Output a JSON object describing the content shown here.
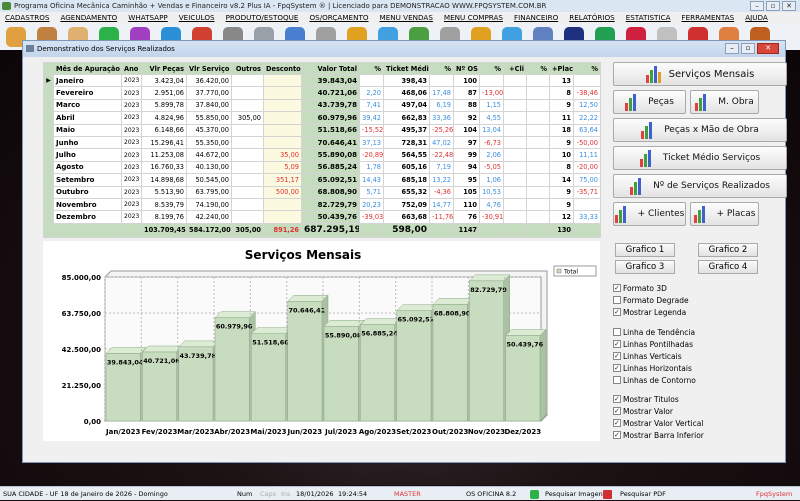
{
  "app": {
    "title": "Programa Oficina Mecânica Caminhão + Vendas e Financeiro v8.2 Plus IA - FpqSystem ® | Licenciado para  DEMONSTRACAO WWW.FPQSYSTEM.COM.BR"
  },
  "menu": [
    "CADASTROS",
    "AGENDAMENTO",
    "WHATSAPP",
    "VEICULOS",
    "PRODUTO/ESTOQUE",
    "OS/ORÇAMENTO",
    "MENU VENDAS",
    "MENU COMPRAS",
    "FINANCEIRO",
    "RELATÓRIOS",
    "ESTATISTICA",
    "FERRAMENTAS",
    "AJUDA"
  ],
  "toolbar_colors": [
    "#e0a040",
    "#c08040",
    "#e0b070",
    "#2db24a",
    "#a040c0",
    "#2b8fd8",
    "#d04030",
    "#888888",
    "#9aa0a8",
    "#4a7fd0",
    "#a0a0a0",
    "#e0a020",
    "#40a0e0",
    "#4aa040",
    "#a0a0a0",
    "#e0a020",
    "#40a0e0",
    "#6080c0",
    "#203080",
    "#20a050",
    "#d02040",
    "#c0c0c0",
    "#d03030",
    "#e08040",
    "#c06020"
  ],
  "window": {
    "title": "Demonstrativo dos Serviços Realizados"
  },
  "grid": {
    "headers": [
      "Mês de Apuração",
      "Ano",
      "Vlr Peças",
      "Vlr Serviço",
      "Outros",
      "Desconto",
      "Valor Total",
      "%",
      "Ticket Médio",
      "%",
      "Nº OS",
      "%",
      "+Cli",
      "%",
      "+Placa",
      "%"
    ],
    "rows": [
      [
        "Janeiro",
        "2023",
        "3.423,04",
        "36.420,00",
        "",
        "",
        "39.843,04",
        "",
        "398,43",
        "",
        "100",
        "",
        "",
        "",
        "13",
        ""
      ],
      [
        "Fevereiro",
        "2023",
        "2.951,06",
        "37.770,00",
        "",
        "",
        "40.721,06",
        "2,20",
        "468,06",
        "17,48",
        "87",
        "-13,00",
        "",
        "",
        "8",
        "-38,46"
      ],
      [
        "Marco",
        "2023",
        "5.899,78",
        "37.840,00",
        "",
        "",
        "43.739,78",
        "7,41",
        "497,04",
        "6,19",
        "88",
        "1,15",
        "",
        "",
        "9",
        "12,50"
      ],
      [
        "Abril",
        "2023",
        "4.824,96",
        "55.850,00",
        "305,00",
        "",
        "60.979,96",
        "39,42",
        "662,83",
        "33,36",
        "92",
        "4,55",
        "",
        "",
        "11",
        "22,22"
      ],
      [
        "Maio",
        "2023",
        "6.148,66",
        "45.370,00",
        "",
        "",
        "51.518,66",
        "-15,52",
        "495,37",
        "-25,26",
        "104",
        "13,04",
        "",
        "",
        "18",
        "63,64"
      ],
      [
        "Junho",
        "2023",
        "15.296,41",
        "55.350,00",
        "",
        "",
        "70.646,41",
        "37,13",
        "728,31",
        "47,02",
        "97",
        "-6,73",
        "",
        "",
        "9",
        "-50,00"
      ],
      [
        "Julho",
        "2023",
        "11.253,08",
        "44.672,00",
        "",
        "35,00",
        "55.890,08",
        "-20,89",
        "564,55",
        "-22,48",
        "99",
        "2,06",
        "",
        "",
        "10",
        "11,11"
      ],
      [
        "Agosto",
        "2023",
        "16.760,33",
        "40.130,00",
        "",
        "5,09",
        "56.885,24",
        "1,78",
        "605,16",
        "7,19",
        "94",
        "-5,05",
        "",
        "",
        "8",
        "-20,00"
      ],
      [
        "Setembro",
        "2023",
        "14.898,68",
        "50.545,00",
        "",
        "351,17",
        "65.092,51",
        "14,43",
        "685,18",
        "13,22",
        "95",
        "1,06",
        "",
        "",
        "14",
        "75,00"
      ],
      [
        "Outubro",
        "2023",
        "5.513,90",
        "63.795,00",
        "",
        "500,00",
        "68.808,90",
        "5,71",
        "655,32",
        "-4,36",
        "105",
        "10,53",
        "",
        "",
        "9",
        "-35,71"
      ],
      [
        "Novembro",
        "2023",
        "8.539,79",
        "74.190,00",
        "",
        "",
        "82.729,79",
        "20,23",
        "752,09",
        "14,77",
        "110",
        "4,76",
        "",
        "",
        "9",
        ""
      ],
      [
        "Dezembro",
        "2023",
        "8.199,76",
        "42.240,00",
        "",
        "",
        "50.439,76",
        "-39,03",
        "663,68",
        "-11,76",
        "76",
        "-30,91",
        "",
        "",
        "12",
        "33,33"
      ]
    ],
    "totals": [
      "",
      "",
      "103.709,45",
      "584.172,00",
      "305,00",
      "891,26",
      "687.295,19",
      "",
      "598,00",
      "",
      "1147",
      "",
      "",
      "",
      "130",
      ""
    ]
  },
  "buttons": {
    "servicos_mensais": "Serviços Mensais",
    "pecas": "Peças",
    "mao_obra": "M. Obra",
    "pecas_x_mao": "Peças x Mão de Obra",
    "ticket": "Ticket Médio Serviços",
    "num_servicos": "Nº de Serviços Realizados",
    "clientes": "+ Clientes",
    "placas": "+ Placas"
  },
  "graph_buttons": [
    "Grafico 1",
    "Grafico 2",
    "Grafico 3",
    "Grafico 4"
  ],
  "options": [
    {
      "label": "Formato 3D",
      "checked": true
    },
    {
      "label": "Formato Degrade",
      "checked": false
    },
    {
      "label": "Mostrar Legenda",
      "checked": true
    },
    {
      "label": "Linha de Tendência",
      "checked": false
    },
    {
      "label": "Linhas Pontilhadas",
      "checked": true
    },
    {
      "label": "Linhas Verticais",
      "checked": true
    },
    {
      "label": "Linhas Horizontais",
      "checked": true
    },
    {
      "label": "Linhas de Contorno",
      "checked": false
    },
    {
      "label": "Mostrar Titulos",
      "checked": true
    },
    {
      "label": "Mostrar Valor",
      "checked": true
    },
    {
      "label": "Mostrar Valor Vertical",
      "checked": true
    },
    {
      "label": "Mostrar Barra Inferior",
      "checked": true
    }
  ],
  "chart_data": {
    "type": "bar",
    "title": "Serviços Mensais",
    "legend": [
      "Total"
    ],
    "legend_position": "top-right",
    "three_d": true,
    "grid": true,
    "categories": [
      "Jan/2023",
      "Fev/2023",
      "Mar/2023",
      "Abr/2023",
      "Mai/2023",
      "Jun/2023",
      "Jul/2023",
      "Ago/2023",
      "Set/2023",
      "Out/2023",
      "Nov/2023",
      "Dez/2023"
    ],
    "values": [
      39843.04,
      40721.06,
      43739.78,
      60979.96,
      51518.66,
      70646.41,
      55890.08,
      56885.24,
      65092.51,
      68808.9,
      82729.79,
      50439.76
    ],
    "value_labels": [
      "39.843,04",
      "40.721,06",
      "43.739,78",
      "60.979,96",
      "51.518,66",
      "70.646,41",
      "55.890,08",
      "56.885,24",
      "65.092,51",
      "68.808,90",
      "82.729,79",
      "50.439,76"
    ],
    "yticks": [
      "0,00",
      "21.250,00",
      "42.500,00",
      "63.750,00",
      "85.000,00"
    ],
    "ylim": [
      0,
      85000
    ],
    "bar_color": "#c8dcbf"
  },
  "status": {
    "city": "SUA CIDADE - UF 18 de Janeiro de 2026 - Domingo",
    "num": "Num",
    "caps": "Caps",
    "ins": "Ins",
    "date": "18/01/2026",
    "time": "19:24:54",
    "user": "MASTER",
    "version": "OS OFICINA 8.2",
    "img": "Pesquisar Imagens",
    "pdf": "Pesquisar PDF",
    "brand": "FpqSystem"
  }
}
